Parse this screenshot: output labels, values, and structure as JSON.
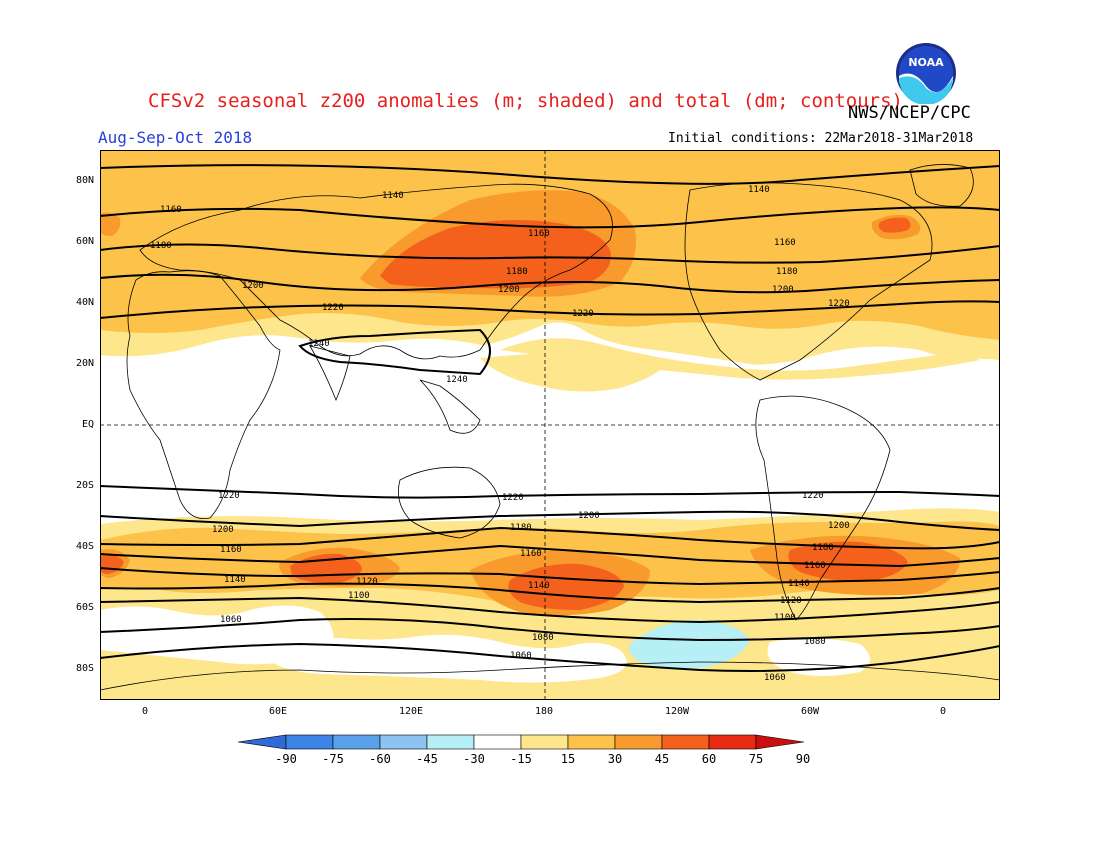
{
  "header": {
    "title": "CFSv2 seasonal z200 anomalies (m; shaded) and total (dm; contours)",
    "agency": "NWS/NCEP/CPC",
    "period": "Aug-Sep-Oct 2018",
    "initial_conditions": "Initial conditions: 22Mar2018-31Mar2018",
    "logo_text": "NOAA"
  },
  "axes": {
    "lat_labels": [
      "80N",
      "60N",
      "40N",
      "20N",
      "EQ",
      "20S",
      "40S",
      "60S",
      "80S"
    ],
    "lon_labels": [
      "0",
      "60E",
      "120E",
      "180",
      "120W",
      "60W",
      "0"
    ]
  },
  "colors": {
    "c15": "#fde68c",
    "c30": "#fcc24a",
    "c45": "#f99a2c",
    "c60": "#f4611c",
    "neg15": "#b6f0f6",
    "land": "#000000"
  },
  "colorbar": {
    "labels": [
      "-90",
      "-75",
      "-60",
      "-45",
      "-30",
      "-15",
      "15",
      "30",
      "45",
      "60",
      "75",
      "90"
    ],
    "colors": [
      "#2f6ad8",
      "#3e83e6",
      "#5aa0ea",
      "#8ec2f0",
      "#b6f0f6",
      "#ffffff",
      "#fde68c",
      "#fcc24a",
      "#f99a2c",
      "#f4611c",
      "#e82b12",
      "#c81010"
    ]
  },
  "contour_labels": [
    "1140",
    "1140",
    "1160",
    "1160",
    "1160",
    "1180",
    "1180",
    "1180",
    "1200",
    "1200",
    "1200",
    "1220",
    "1220",
    "1220",
    "1240",
    "1240",
    "1220",
    "1220",
    "1220",
    "1200",
    "1200",
    "1200",
    "1180",
    "1180",
    "1160",
    "1160",
    "1160",
    "1140",
    "1140",
    "1140",
    "1120",
    "1120",
    "1100",
    "1100",
    "1080",
    "1080",
    "1060",
    "1060",
    "1060"
  ]
}
